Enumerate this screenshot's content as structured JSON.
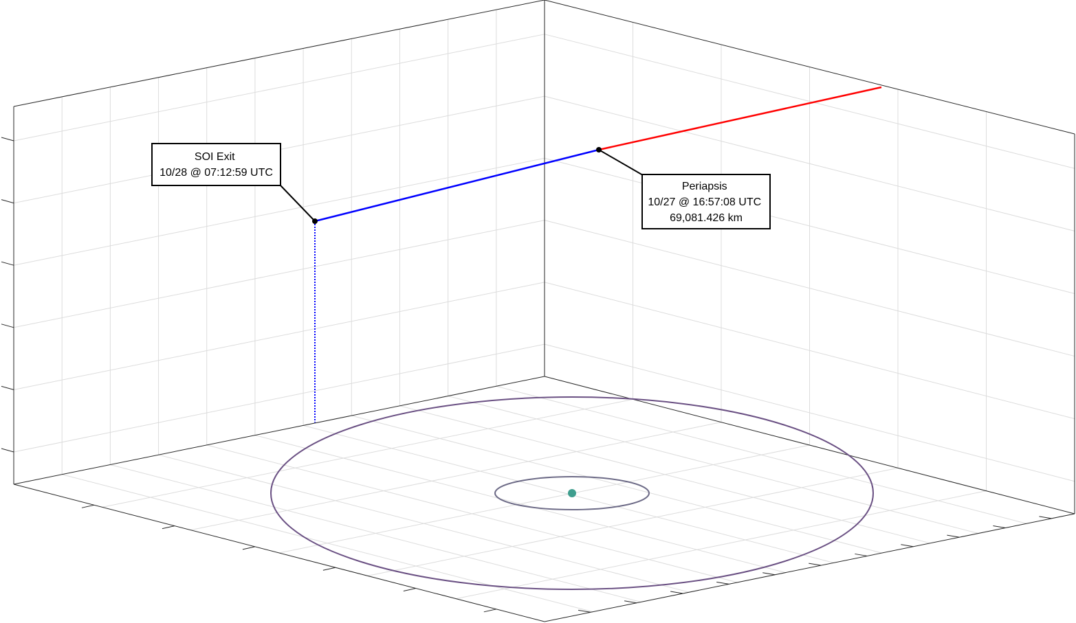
{
  "annotations": [
    {
      "lines": [
        "SOI Exit",
        "10/28 @ 07:12:59 UTC"
      ]
    },
    {
      "lines": [
        "Periapsis",
        "10/27 @ 16:57:08 UTC",
        "69,081.426 km"
      ]
    }
  ]
}
